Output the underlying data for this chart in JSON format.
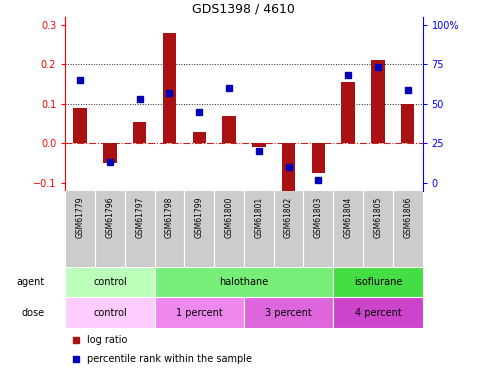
{
  "title": "GDS1398 / 4610",
  "samples": [
    "GSM61779",
    "GSM61796",
    "GSM61797",
    "GSM61798",
    "GSM61799",
    "GSM61800",
    "GSM61801",
    "GSM61802",
    "GSM61803",
    "GSM61804",
    "GSM61805",
    "GSM61806"
  ],
  "log_ratio": [
    0.09,
    -0.05,
    0.055,
    0.28,
    0.03,
    0.07,
    -0.01,
    -0.12,
    -0.075,
    0.155,
    0.21,
    0.1
  ],
  "percentile_rank_pct": [
    65,
    13,
    53,
    57,
    45,
    60,
    20,
    10,
    2,
    68,
    73,
    59
  ],
  "agent_groups": [
    {
      "label": "control",
      "start": 0,
      "end": 3,
      "color": "#bbffbb"
    },
    {
      "label": "halothane",
      "start": 3,
      "end": 9,
      "color": "#77ee77"
    },
    {
      "label": "isoflurane",
      "start": 9,
      "end": 12,
      "color": "#44dd44"
    }
  ],
  "dose_groups": [
    {
      "label": "control",
      "start": 0,
      "end": 3,
      "color": "#ffccff"
    },
    {
      "label": "1 percent",
      "start": 3,
      "end": 6,
      "color": "#ee88ee"
    },
    {
      "label": "3 percent",
      "start": 6,
      "end": 9,
      "color": "#dd66dd"
    },
    {
      "label": "4 percent",
      "start": 9,
      "end": 12,
      "color": "#cc44cc"
    }
  ],
  "bar_color": "#aa1111",
  "dot_color": "#0000bb",
  "ylim_left": [
    -0.12,
    0.32
  ],
  "yticks_left": [
    -0.1,
    0.0,
    0.1,
    0.2,
    0.3
  ],
  "right_axis_pct": [
    0,
    25,
    50,
    75,
    100
  ],
  "zero_line_color": "#cc2222",
  "dotted_line_color": "#222222",
  "background_color": "#ffffff",
  "gray_bg": "#cccccc"
}
